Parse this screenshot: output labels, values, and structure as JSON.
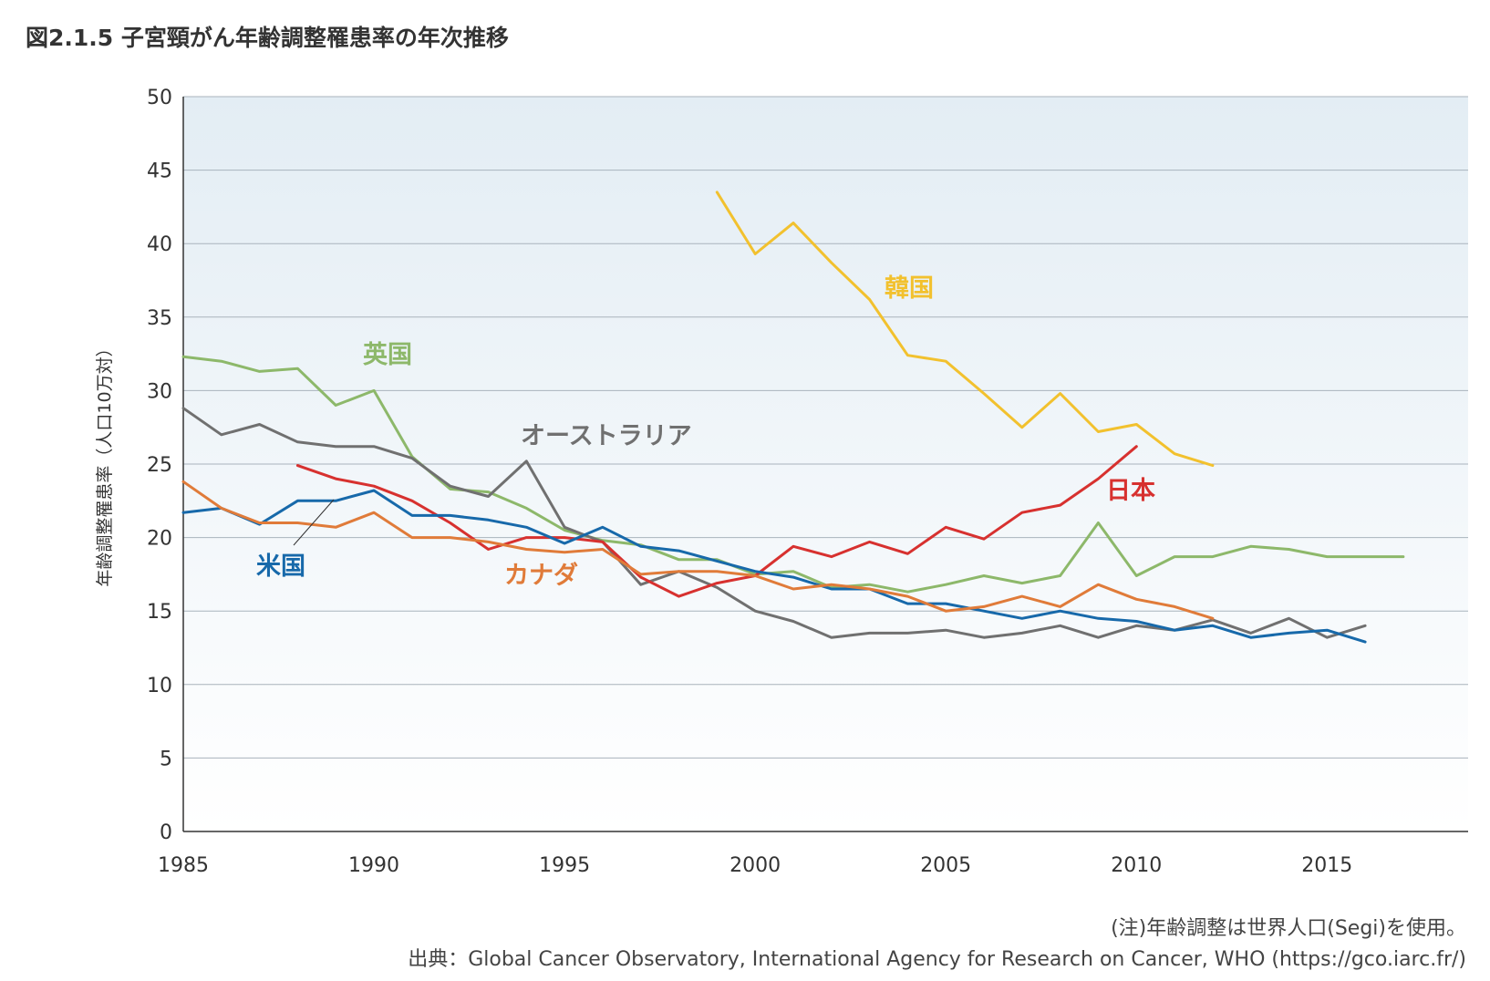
{
  "title": "図2.1.5  子宮頸がん年齢調整罹患率の年次推移",
  "note": "(注)年齢調整は世界人口(Segi)を使用。",
  "source": "出典：Global Cancer Observatory, International Agency for Research on Cancer, WHO (https://gco.iarc.fr/)",
  "chart_data": {
    "type": "line",
    "title": "図2.1.5  子宮頸がん年齢調整罹患率の年次推移",
    "xlabel": "",
    "ylabel": "年齢調整罹患率（人口10万対）",
    "xlim": [
      1985,
      2018.7
    ],
    "ylim": [
      0,
      50
    ],
    "xticks": [
      1985,
      1990,
      1995,
      2000,
      2005,
      2010,
      2015
    ],
    "yticks": [
      0,
      5,
      10,
      15,
      20,
      25,
      30,
      35,
      40,
      45,
      50
    ],
    "grid": true,
    "legend": "direct labels",
    "series": [
      {
        "name": "英国",
        "color": "#8DB86A",
        "x": [
          1985,
          1986,
          1987,
          1988,
          1989,
          1990,
          1991,
          1992,
          1993,
          1994,
          1995,
          1996,
          1997,
          1998,
          1999,
          2000,
          2001,
          2002,
          2003,
          2004,
          2005,
          2006,
          2007,
          2008,
          2009,
          2010,
          2011,
          2012,
          2013,
          2014,
          2015,
          2016,
          2017
        ],
        "y": [
          32.3,
          32.0,
          31.3,
          31.5,
          29.0,
          30.0,
          25.5,
          23.3,
          23.1,
          22.0,
          20.5,
          19.8,
          19.5,
          18.5,
          18.5,
          17.5,
          17.7,
          16.6,
          16.8,
          16.3,
          16.8,
          17.4,
          16.9,
          17.4,
          21.0,
          17.4,
          18.7,
          18.7,
          19.4,
          19.2,
          18.7,
          18.7,
          18.7
        ]
      },
      {
        "name": "オーストラリア",
        "color": "#707070",
        "x": [
          1985,
          1986,
          1987,
          1988,
          1989,
          1990,
          1991,
          1992,
          1993,
          1994,
          1995,
          1996,
          1997,
          1998,
          1999,
          2000,
          2001,
          2002,
          2003,
          2004,
          2005,
          2006,
          2007,
          2008,
          2009,
          2010,
          2011,
          2012,
          2013,
          2014,
          2015,
          2016
        ],
        "y": [
          28.8,
          27.0,
          27.7,
          26.5,
          26.2,
          26.2,
          25.4,
          23.5,
          22.8,
          25.2,
          20.7,
          19.7,
          16.8,
          17.7,
          16.6,
          15.0,
          14.3,
          13.2,
          13.5,
          13.5,
          13.7,
          13.2,
          13.5,
          14.0,
          13.2,
          14.0,
          13.7,
          14.4,
          13.5,
          14.5,
          13.2,
          14.0
        ]
      },
      {
        "name": "韓国",
        "color": "#F2C12E",
        "x": [
          1999,
          2000,
          2001,
          2002,
          2003,
          2004,
          2005,
          2006,
          2007,
          2008,
          2009,
          2010,
          2011,
          2012
        ],
        "y": [
          43.5,
          39.3,
          41.4,
          38.7,
          36.2,
          32.4,
          32.0,
          29.8,
          27.5,
          29.8,
          27.2,
          27.7,
          25.7,
          24.9
        ]
      },
      {
        "name": "日本",
        "color": "#D7312F",
        "x": [
          1988,
          1989,
          1990,
          1991,
          1992,
          1993,
          1994,
          1995,
          1996,
          1997,
          1998,
          1999,
          2000,
          2001,
          2002,
          2003,
          2004,
          2005,
          2006,
          2007,
          2008,
          2009,
          2010
        ],
        "y": [
          24.9,
          24.0,
          23.5,
          22.5,
          21.0,
          19.2,
          20.0,
          20.0,
          19.7,
          17.3,
          16.0,
          16.9,
          17.4,
          19.4,
          18.7,
          19.7,
          18.9,
          20.7,
          19.9,
          21.7,
          22.2,
          24.0,
          26.2
        ]
      },
      {
        "name": "米国",
        "color": "#1769AA",
        "x": [
          1985,
          1986,
          1987,
          1988,
          1989,
          1990,
          1991,
          1992,
          1993,
          1994,
          1995,
          1996,
          1997,
          1998,
          1999,
          2000,
          2001,
          2002,
          2003,
          2004,
          2005,
          2006,
          2007,
          2008,
          2009,
          2010,
          2011,
          2012,
          2013,
          2014,
          2015,
          2016
        ],
        "y": [
          21.7,
          22.0,
          20.9,
          22.5,
          22.5,
          23.2,
          21.5,
          21.5,
          21.2,
          20.7,
          19.6,
          20.7,
          19.4,
          19.1,
          18.4,
          17.7,
          17.3,
          16.5,
          16.5,
          15.5,
          15.5,
          15.0,
          14.5,
          15.0,
          14.5,
          14.3,
          13.7,
          14.0,
          13.2,
          13.5,
          13.7,
          12.9
        ]
      },
      {
        "name": "カナダ",
        "color": "#E07B39",
        "x": [
          1985,
          1986,
          1987,
          1988,
          1989,
          1990,
          1991,
          1992,
          1993,
          1994,
          1995,
          1996,
          1997,
          1998,
          1999,
          2000,
          2001,
          2002,
          2003,
          2004,
          2005,
          2006,
          2007,
          2008,
          2009,
          2010,
          2011,
          2012
        ],
        "y": [
          23.8,
          22.0,
          21.0,
          21.0,
          20.7,
          21.7,
          20.0,
          20.0,
          19.7,
          19.2,
          19.0,
          19.2,
          17.5,
          17.7,
          17.7,
          17.4,
          16.5,
          16.8,
          16.5,
          16.0,
          15.0,
          15.3,
          16.0,
          15.3,
          16.8,
          15.8,
          15.3,
          14.5
        ]
      }
    ],
    "annotations": [
      {
        "text": "英国",
        "series": "英国",
        "color": "#8DB86A"
      },
      {
        "text": "オーストラリア",
        "series": "オーストラリア",
        "color": "#707070"
      },
      {
        "text": "韓国",
        "series": "韓国",
        "color": "#F2C12E"
      },
      {
        "text": "日本",
        "series": "日本",
        "color": "#D7312F"
      },
      {
        "text": "米国",
        "series": "米国",
        "color": "#1769AA"
      },
      {
        "text": "カナダ",
        "series": "カナダ",
        "color": "#E07B39"
      }
    ]
  }
}
